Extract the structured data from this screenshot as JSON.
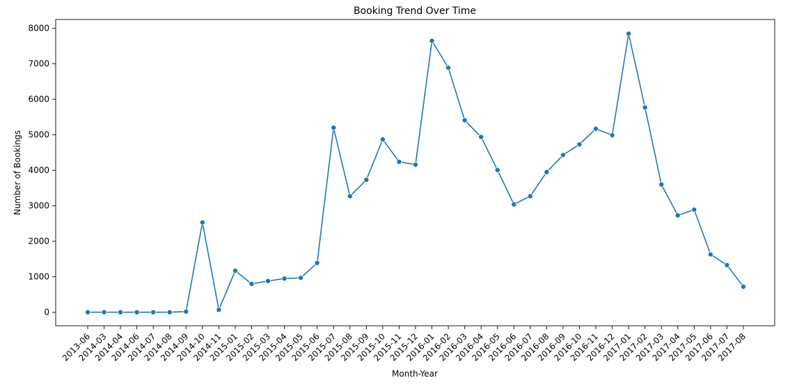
{
  "chart_data": {
    "type": "line",
    "title": "Booking Trend Over Time",
    "xlabel": "Month-Year",
    "ylabel": "Number of Bookings",
    "ylim": [
      -380,
      8250
    ],
    "yticks": [
      0,
      1000,
      2000,
      3000,
      4000,
      5000,
      6000,
      7000,
      8000
    ],
    "grid": false,
    "categories": [
      "2013-06",
      "2014-03",
      "2014-04",
      "2014-06",
      "2014-07",
      "2014-08",
      "2014-09",
      "2014-10",
      "2014-11",
      "2015-01",
      "2015-02",
      "2015-03",
      "2015-04",
      "2015-05",
      "2015-06",
      "2015-07",
      "2015-08",
      "2015-09",
      "2015-10",
      "2015-11",
      "2015-12",
      "2016-01",
      "2016-02",
      "2016-03",
      "2016-04",
      "2016-05",
      "2016-06",
      "2016-07",
      "2016-08",
      "2016-09",
      "2016-10",
      "2016-11",
      "2016-12",
      "2017-01",
      "2017-02",
      "2017-03",
      "2017-04",
      "2017-05",
      "2017-06",
      "2017-07",
      "2017-08"
    ],
    "series": [
      {
        "color": "#1f77b4",
        "marker": "circle",
        "values": [
          1,
          1,
          1,
          1,
          1,
          1,
          20,
          2530,
          70,
          1170,
          800,
          880,
          950,
          970,
          1390,
          5200,
          3270,
          3730,
          4870,
          4240,
          4160,
          7650,
          6890,
          5410,
          4940,
          4010,
          3040,
          3270,
          3950,
          4430,
          4730,
          5170,
          4990,
          7850,
          5770,
          3600,
          2730,
          2890,
          1630,
          1330,
          720
        ]
      }
    ]
  }
}
